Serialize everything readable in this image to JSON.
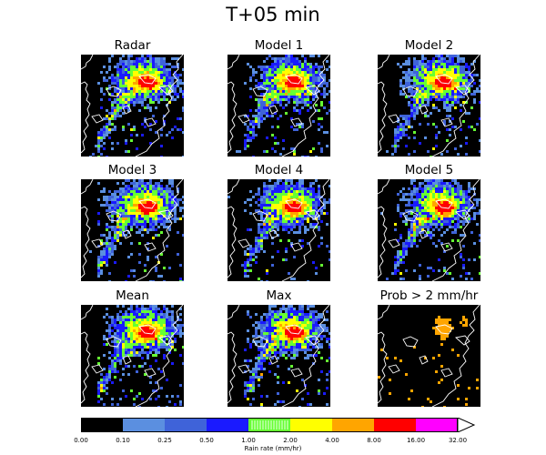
{
  "figure": {
    "title": "T+05 min"
  },
  "panels": [
    {
      "title": "Radar",
      "kind": "rain"
    },
    {
      "title": "Model 1",
      "kind": "rain"
    },
    {
      "title": "Model 2",
      "kind": "rain"
    },
    {
      "title": "Model 3",
      "kind": "rain"
    },
    {
      "title": "Model 4",
      "kind": "rain"
    },
    {
      "title": "Model 5",
      "kind": "rain"
    },
    {
      "title": "Mean",
      "kind": "rain"
    },
    {
      "title": "Max",
      "kind": "rain"
    },
    {
      "title": "Prob > 2 mm/hr",
      "kind": "prob"
    }
  ],
  "colorbar": {
    "label": "Rain rate (mm/hr)",
    "ticks": [
      "0.00",
      "0.10",
      "0.25",
      "0.50",
      "1.00",
      "2.00",
      "4.00",
      "8.00",
      "16.00",
      "32.00"
    ],
    "colors": [
      "#000000",
      "#5b8fe0",
      "#3f63d9",
      "#1a1aff",
      "#66ff33",
      "#ffff00",
      "#ffa500",
      "#ff0000",
      "#ff00ff"
    ],
    "extend_color": "#ffffff",
    "background_color": "#000000",
    "coastline_color": "#ffffff",
    "prob_color": "#ffa500"
  }
}
